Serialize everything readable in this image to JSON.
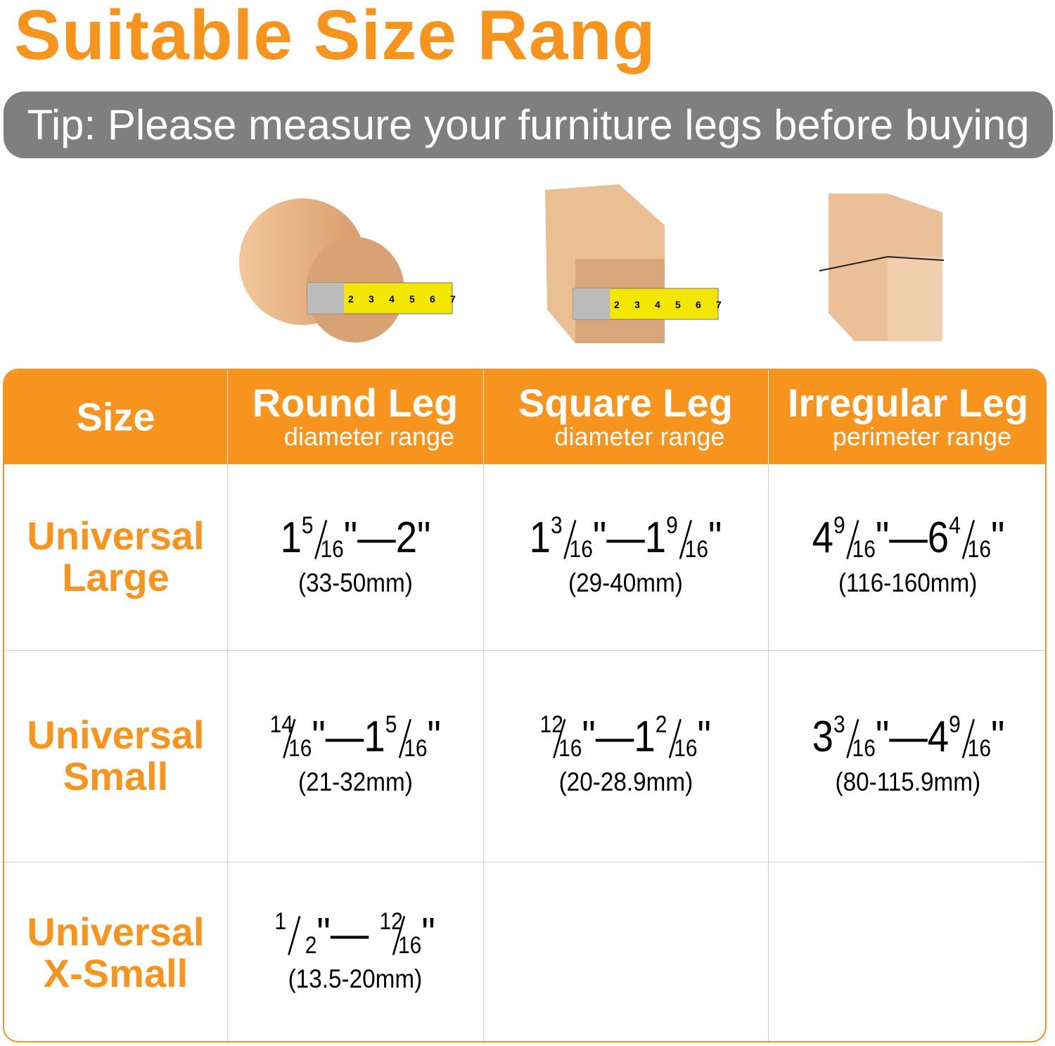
{
  "title": "Suitable Size Rang",
  "tip": "Tip: Please measure your furniture legs before buying",
  "illustrations": {
    "tape_numbers": [
      "2",
      "3",
      "4",
      "5",
      "6",
      "7"
    ]
  },
  "table": {
    "headers": [
      {
        "title": "Size"
      },
      {
        "title": "Round Leg",
        "subtitle": "diameter range"
      },
      {
        "title": "Square Leg",
        "subtitle": "diameter range"
      },
      {
        "title": "Irregular Leg",
        "subtitle": "perimeter range"
      }
    ],
    "rows": [
      {
        "label": [
          "Universal",
          "Large"
        ],
        "cells": [
          {
            "inch": [
              "1",
              {
                "num": "5",
                "den": "16"
              },
              "\"—2\""
            ],
            "mm": "(33-50mm)"
          },
          {
            "inch": [
              "1",
              {
                "num": "3",
                "den": "16"
              },
              "\"—1",
              {
                "num": "9",
                "den": "16"
              },
              "\""
            ],
            "mm": "(29-40mm)"
          },
          {
            "inch": [
              "4",
              {
                "num": "9",
                "den": "16"
              },
              "\"—6",
              {
                "num": "4",
                "den": "16"
              },
              "\""
            ],
            "mm": "(116-160mm)"
          }
        ]
      },
      {
        "label": [
          "Universal",
          "Small"
        ],
        "cells": [
          {
            "inch": [
              {
                "num": "14",
                "den": "16"
              },
              "\"—1",
              {
                "num": "5",
                "den": "16"
              },
              "\""
            ],
            "mm": "(21-32mm)"
          },
          {
            "inch": [
              {
                "num": "12",
                "den": "16"
              },
              "\"—1",
              {
                "num": "2",
                "den": "16"
              },
              "\""
            ],
            "mm": "(20-28.9mm)"
          },
          {
            "inch": [
              "3",
              {
                "num": "3",
                "den": "16"
              },
              "\"—4",
              {
                "num": "9",
                "den": "16"
              },
              "\""
            ],
            "mm": "(80-115.9mm)"
          }
        ]
      },
      {
        "label": [
          "Universal",
          "X-Small"
        ],
        "cells": [
          {
            "inch": [
              {
                "num": "1",
                "den": "2"
              },
              "\"— ",
              {
                "num": "12",
                "den": "16"
              },
              "\""
            ],
            "mm": "(13.5-20mm)"
          },
          null,
          null
        ]
      }
    ]
  }
}
